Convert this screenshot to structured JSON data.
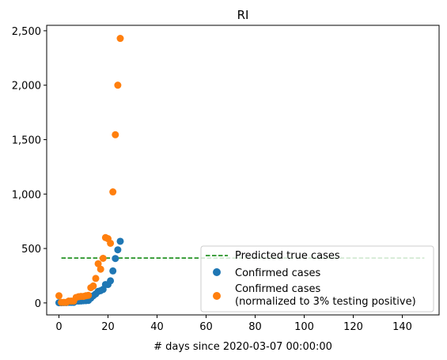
{
  "chart_data": {
    "type": "scatter",
    "title": "RI",
    "xlabel": "# days since 2020-03-07 00:00:00",
    "ylabel": "",
    "xlim": [
      -5,
      155
    ],
    "ylim": [
      -110,
      2550
    ],
    "x_ticks": [
      0,
      20,
      40,
      60,
      80,
      100,
      120,
      140
    ],
    "x_tick_labels": [
      "0",
      "20",
      "40",
      "60",
      "80",
      "100",
      "120",
      "140"
    ],
    "y_ticks": [
      0,
      500,
      1000,
      1500,
      2000,
      2500
    ],
    "y_tick_labels": [
      "0",
      "500",
      "1,000",
      "1,500",
      "2,000",
      "2,500"
    ],
    "grid": false,
    "legend_position": "lower-right",
    "series": [
      {
        "name": "Predicted true cases",
        "kind": "line",
        "style": "dashed",
        "color": "#008000",
        "x": [
          1,
          149
        ],
        "y": [
          412,
          412
        ]
      },
      {
        "name": "Confirmed cases",
        "kind": "scatter",
        "color": "#1f77b4",
        "x": [
          0,
          1,
          2,
          3,
          4,
          5,
          6,
          7,
          8,
          9,
          10,
          11,
          12,
          13,
          14,
          15,
          16,
          17,
          18,
          19,
          20,
          21,
          22,
          23,
          24,
          25
        ],
        "y": [
          2,
          2,
          3,
          3,
          5,
          5,
          5,
          17,
          17,
          18,
          20,
          21,
          23,
          44,
          66,
          83,
          106,
          113,
          124,
          169,
          169,
          203,
          294,
          408,
          488,
          566
        ]
      },
      {
        "name": "Confirmed cases\n(normalized to 3% testing positive)",
        "kind": "scatter",
        "color": "#ff7f0e",
        "x": [
          0,
          1,
          2,
          3,
          4,
          5,
          6,
          7,
          8,
          9,
          10,
          11,
          12,
          13,
          14,
          15,
          16,
          17,
          18,
          19,
          20,
          21,
          22,
          23,
          24,
          25
        ],
        "y": [
          66,
          5,
          5,
          5,
          17,
          17,
          17,
          50,
          57,
          60,
          60,
          66,
          70,
          140,
          156,
          225,
          360,
          310,
          410,
          600,
          590,
          548,
          1020,
          1545,
          2000,
          2430
        ]
      }
    ]
  },
  "legend": {
    "entries": [
      "Predicted true cases",
      "Confirmed cases",
      "Confirmed cases",
      "(normalized to 3% testing positive)"
    ]
  }
}
